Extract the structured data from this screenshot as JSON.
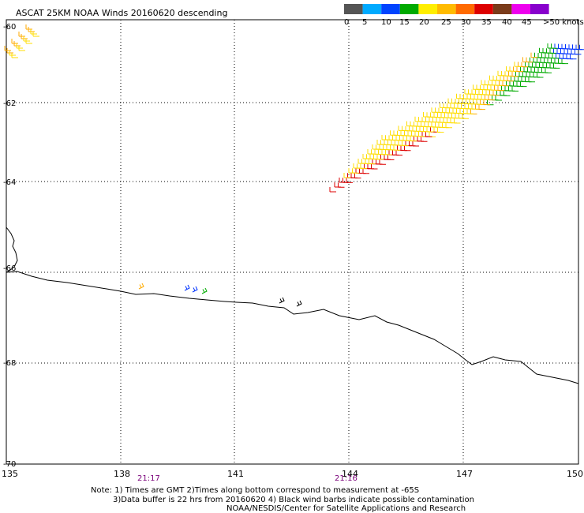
{
  "title": "ASCAT 25KM NOAA Winds 20160620 descending",
  "legend": {
    "colors": [
      "#555555",
      "#00aaff",
      "#0044ff",
      "#00aa00",
      "#ffee00",
      "#ffbb00",
      "#ff6a00",
      "#dd0000",
      "#7a3b1a",
      "#ee00ee",
      "#8800cc"
    ],
    "labels": [
      "0",
      "5",
      "10",
      "15",
      "20",
      "25",
      "30",
      "35",
      "40",
      "45",
      ">50 knots"
    ]
  },
  "axes": {
    "lat_labels": [
      "-60",
      "-62",
      "-64",
      "-66",
      "-68",
      "-70"
    ],
    "lon_labels": [
      "135",
      "138",
      "141",
      "144",
      "147",
      "150"
    ]
  },
  "times": [
    "21:17",
    "21:16"
  ],
  "notes": {
    "line1": "Note: 1) Times are GMT 2)Times along bottom correspond to measurement at -65S",
    "line2": "3)Data buffer is 22 hrs from 20160620 4) Black wind barbs indicate possible contamination",
    "line3": "NOAA/NESDIS/Center for Satellite Applications and Research"
  }
}
